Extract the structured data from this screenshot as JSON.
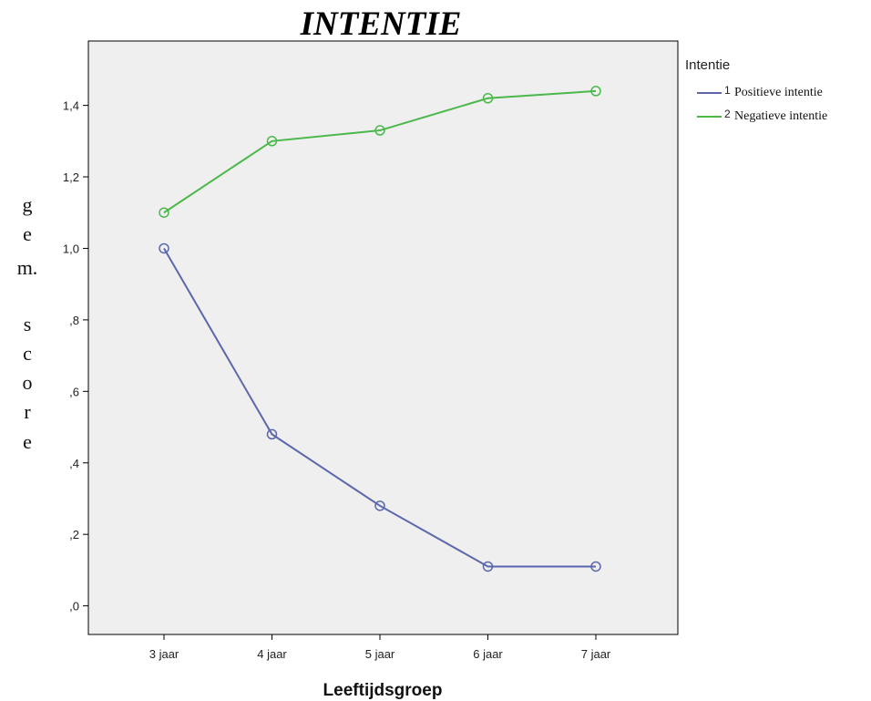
{
  "chart_data": {
    "type": "line",
    "title": "INTENTIE",
    "xlabel": "Leeftijdsgroep",
    "ylabel": "gem. score",
    "ylabel_lines": [
      "g",
      "e",
      "m.",
      "",
      "s",
      "c",
      "o",
      "r",
      "e"
    ],
    "categories": [
      "3 jaar",
      "4 jaar",
      "5 jaar",
      "6 jaar",
      "7 jaar"
    ],
    "ylim": [
      -0.08,
      1.58
    ],
    "yticks": [
      0.0,
      0.2,
      0.4,
      0.6,
      0.8,
      1.0,
      1.2,
      1.4
    ],
    "ytick_labels": [
      ",0",
      ",2",
      ",4",
      ",6",
      ",8",
      "1,0",
      "1,2",
      "1,4"
    ],
    "grid": false,
    "legend_position": "right",
    "legend": {
      "title": "Intentie",
      "items": [
        {
          "number": "1",
          "label": "Positieve intentie"
        },
        {
          "number": "2",
          "label": "Negatieve intentie"
        }
      ]
    },
    "series": [
      {
        "name": "Positieve intentie",
        "color": "#5b67ad",
        "values": [
          1.0,
          0.48,
          0.28,
          0.11,
          0.11
        ]
      },
      {
        "name": "Negatieve intentie",
        "color": "#4bb84b",
        "values": [
          1.1,
          1.3,
          1.33,
          1.42,
          1.44
        ]
      }
    ]
  },
  "colors": {
    "plot_background": "#efefef",
    "axis": "#000000"
  }
}
